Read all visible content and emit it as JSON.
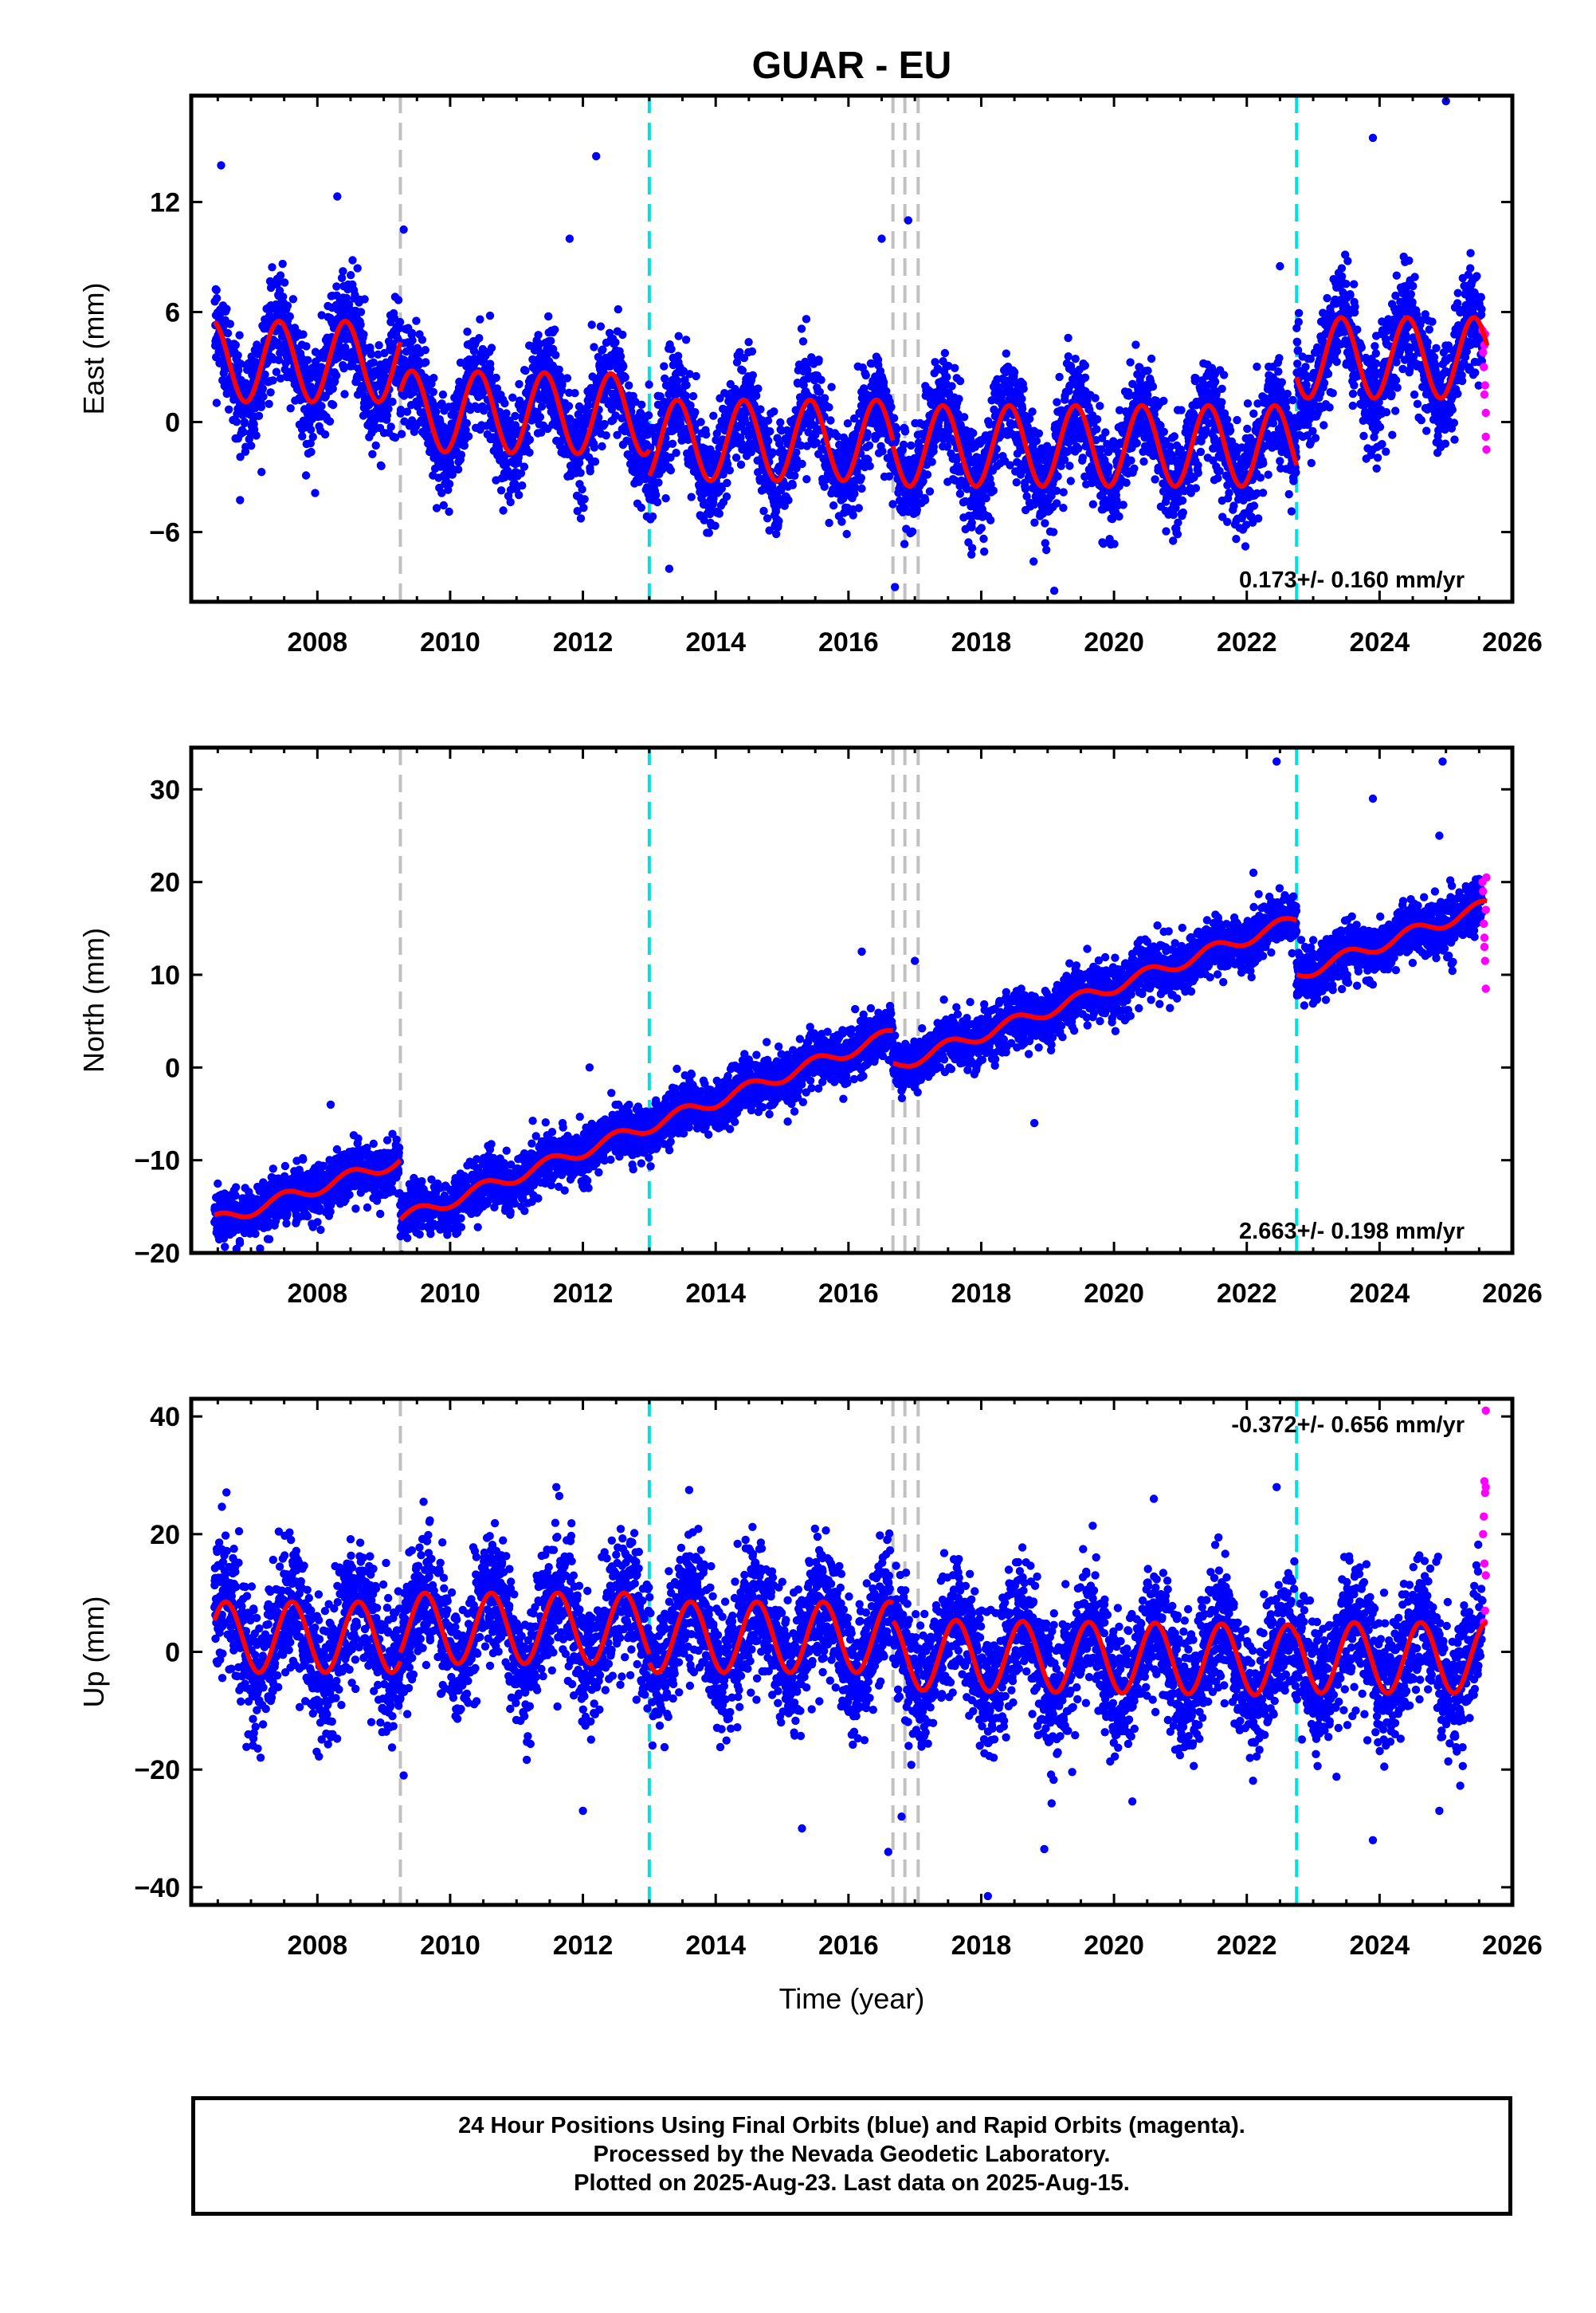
{
  "chart_data": {
    "type": "scatter",
    "title": "GUAR - EU",
    "xlabel": "Time (year)",
    "xlim": [
      2006.1,
      2026.0
    ],
    "xticks": [
      2008,
      2010,
      2012,
      2014,
      2016,
      2018,
      2020,
      2022,
      2024,
      2026
    ],
    "series_legend": [
      "24 Hour Positions Using Final Orbits (blue)",
      "Rapid Orbits (magenta)",
      "model fit (red)"
    ],
    "colors": {
      "final": "#0000ff",
      "rapid": "#ff00ff",
      "fit": "#ff0000",
      "equipment_change": "#c0c0c0",
      "earthquake": "#00e0e0"
    },
    "vertical_lines": {
      "gray": [
        2009.25,
        2016.67,
        2016.85,
        2017.05
      ],
      "cyan": [
        2013.0,
        2022.75
      ]
    },
    "panels": [
      {
        "name": "east",
        "ylabel": "East (mm)",
        "ylim": [
          -9.8,
          17.8
        ],
        "yticks": [
          -6,
          0,
          6,
          12
        ],
        "ytick_labels": [
          "−6",
          "0",
          "6",
          "12"
        ],
        "rate": "0.173+/- 0.160 mm/yr",
        "rate_position": "bottom-right",
        "fit": {
          "amplitude": 2.2,
          "phase_peak": 0.42,
          "segments": [
            {
              "start": 2006.45,
              "end": 2009.25,
              "offset": 3.3,
              "trend": 0.0
            },
            {
              "start": 2009.25,
              "end": 2013.0,
              "offset": 0.6,
              "trend": -0.05
            },
            {
              "start": 2013.0,
              "end": 2016.67,
              "offset": -1.0,
              "trend": 0.0
            },
            {
              "start": 2016.67,
              "end": 2022.75,
              "offset": -1.3,
              "trend": 0.0
            },
            {
              "start": 2022.75,
              "end": 2025.62,
              "offset": 3.5,
              "trend": 0.0
            }
          ]
        },
        "noise_sd": 1.4,
        "outliers": [
          [
            2006.55,
            14.0
          ],
          [
            2012.2,
            14.5
          ],
          [
            2025.0,
            17.5
          ],
          [
            2023.9,
            15.5
          ],
          [
            2008.3,
            12.3
          ],
          [
            2016.5,
            10.0
          ],
          [
            2011.8,
            10.0
          ],
          [
            2019.1,
            -9.2
          ],
          [
            2016.7,
            -9.0
          ],
          [
            2009.3,
            10.5
          ],
          [
            2016.9,
            11.0
          ],
          [
            2022.5,
            8.5
          ],
          [
            2013.3,
            -8.0
          ]
        ],
        "rapid_points": [
          [
            2025.55,
            5.0
          ],
          [
            2025.56,
            3.8
          ],
          [
            2025.57,
            3.0
          ],
          [
            2025.58,
            4.2
          ],
          [
            2025.59,
            2.0
          ],
          [
            2025.6,
            0.5
          ],
          [
            2025.6,
            -0.8
          ],
          [
            2025.61,
            -1.5
          ],
          [
            2025.58,
            1.5
          ],
          [
            2025.59,
            4.8
          ]
        ]
      },
      {
        "name": "north",
        "ylabel": "North (mm)",
        "ylim": [
          -20.0,
          34.5
        ],
        "yticks": [
          -20,
          -10,
          0,
          10,
          20,
          30
        ],
        "ytick_labels": [
          "−20",
          "−10",
          "0",
          "10",
          "20",
          "30"
        ],
        "rate": "2.663+/- 0.198 mm/yr",
        "rate_position": "bottom-right",
        "fit": {
          "amplitude": 0.7,
          "phase_peak": 0.5,
          "segments": [
            {
              "start": 2006.45,
              "end": 2009.25,
              "offset": -16.6,
              "trend": 2.35
            },
            {
              "start": 2009.25,
              "end": 2013.0,
              "offset": -16.4,
              "trend": 2.7
            },
            {
              "start": 2013.0,
              "end": 2016.67,
              "offset": -6.3,
              "trend": 2.7
            },
            {
              "start": 2016.67,
              "end": 2022.75,
              "offset": 0.1,
              "trend": 2.6
            },
            {
              "start": 2022.75,
              "end": 2025.62,
              "offset": 10.0,
              "trend": 2.6
            }
          ]
        },
        "noise_sd": 1.4,
        "outliers": [
          [
            2022.45,
            33.0
          ],
          [
            2024.95,
            33.0
          ],
          [
            2023.9,
            29.0
          ],
          [
            2016.2,
            12.5
          ],
          [
            2008.2,
            -4.0
          ],
          [
            2012.1,
            0.0
          ],
          [
            2017.0,
            11.5
          ],
          [
            2018.8,
            -6.0
          ],
          [
            2024.9,
            25.0
          ],
          [
            2022.1,
            21.0
          ]
        ],
        "rapid_points": [
          [
            2025.55,
            20.0
          ],
          [
            2025.56,
            19.0
          ],
          [
            2025.57,
            15.5
          ],
          [
            2025.58,
            14.0
          ],
          [
            2025.59,
            11.5
          ],
          [
            2025.6,
            8.5
          ],
          [
            2025.6,
            17.0
          ],
          [
            2025.61,
            20.5
          ],
          [
            2025.58,
            13.0
          ]
        ]
      },
      {
        "name": "up",
        "ylabel": "Up (mm)",
        "ylim": [
          -43.0,
          43.0
        ],
        "yticks": [
          -40,
          -20,
          0,
          20,
          40
        ],
        "ytick_labels": [
          "−40",
          "−20",
          "0",
          "20",
          "40"
        ],
        "rate": "-0.372+/- 0.656 mm/yr",
        "rate_position": "top-right",
        "fit": {
          "amplitude": 6.0,
          "phase_peak": 0.62,
          "segments": [
            {
              "start": 2006.45,
              "end": 2009.25,
              "offset": 2.5,
              "trend": 0.0
            },
            {
              "start": 2009.25,
              "end": 2013.0,
              "offset": 4.0,
              "trend": 0.0
            },
            {
              "start": 2013.0,
              "end": 2016.67,
              "offset": 2.5,
              "trend": 0.0
            },
            {
              "start": 2016.67,
              "end": 2022.75,
              "offset": -0.5,
              "trend": -0.15
            },
            {
              "start": 2022.75,
              "end": 2025.62,
              "offset": -1.0,
              "trend": 0.0
            }
          ]
        },
        "noise_sd": 5.5,
        "outliers": [
          [
            2018.1,
            -41.5
          ],
          [
            2023.9,
            -32.0
          ],
          [
            2018.95,
            -33.5
          ],
          [
            2016.6,
            -34.0
          ],
          [
            2012.0,
            -27.0
          ],
          [
            2015.3,
            -30.0
          ],
          [
            2009.3,
            -21.0
          ],
          [
            2022.45,
            28.0
          ],
          [
            2013.6,
            27.5
          ],
          [
            2011.6,
            28.0
          ],
          [
            2020.6,
            26.0
          ],
          [
            2009.6,
            25.5
          ],
          [
            2024.9,
            -27.0
          ],
          [
            2016.8,
            -28.0
          ]
        ],
        "rapid_points": [
          [
            2025.6,
            41.0
          ],
          [
            2025.58,
            29.0
          ],
          [
            2025.59,
            27.0
          ],
          [
            2025.57,
            23.0
          ],
          [
            2025.56,
            20.0
          ],
          [
            2025.58,
            15.0
          ],
          [
            2025.6,
            13.0
          ],
          [
            2025.59,
            7.0
          ],
          [
            2025.57,
            5.0
          ],
          [
            2025.6,
            28.0
          ]
        ]
      }
    ]
  },
  "footer": {
    "line1": "24 Hour Positions Using Final Orbits (blue) and Rapid Orbits (magenta).",
    "line2": "Processed by the Nevada Geodetic Laboratory.",
    "line3": "Plotted on 2025-Aug-23. Last data on 2025-Aug-15."
  }
}
